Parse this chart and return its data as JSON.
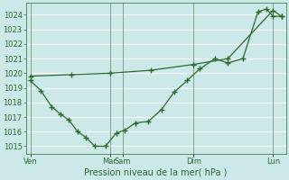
{
  "xlabel": "Pression niveau de la mer( hPa )",
  "bg_color": "#cce8e8",
  "grid_color": "#ffffff",
  "line_color": "#2d6a2d",
  "ylim": [
    1014.5,
    1024.8
  ],
  "yticks": [
    1015,
    1016,
    1017,
    1018,
    1019,
    1020,
    1021,
    1022,
    1023,
    1024
  ],
  "vline_positions": [
    0,
    37,
    43,
    76,
    113
  ],
  "day_labels": [
    "Ven",
    "Mar",
    "Sam",
    "Dim",
    "Lun"
  ],
  "xmax": 117,
  "line1_x": [
    0,
    5,
    10,
    14,
    18,
    22,
    26,
    30,
    35,
    40,
    44,
    49,
    55,
    61,
    67,
    73,
    79,
    86,
    92,
    99,
    106,
    110,
    113,
    117
  ],
  "line1_y": [
    1019.5,
    1018.8,
    1017.7,
    1017.2,
    1016.8,
    1016.0,
    1015.6,
    1015.0,
    1015.0,
    1015.9,
    1016.1,
    1016.6,
    1016.7,
    1017.5,
    1018.7,
    1019.5,
    1020.3,
    1021.0,
    1020.7,
    1021.0,
    1024.2,
    1024.4,
    1023.9,
    1023.9
  ],
  "line2_x": [
    0,
    19,
    37,
    56,
    76,
    92,
    113,
    117
  ],
  "line2_y": [
    1019.8,
    1019.9,
    1020.0,
    1020.2,
    1020.6,
    1021.0,
    1024.3,
    1023.9
  ]
}
